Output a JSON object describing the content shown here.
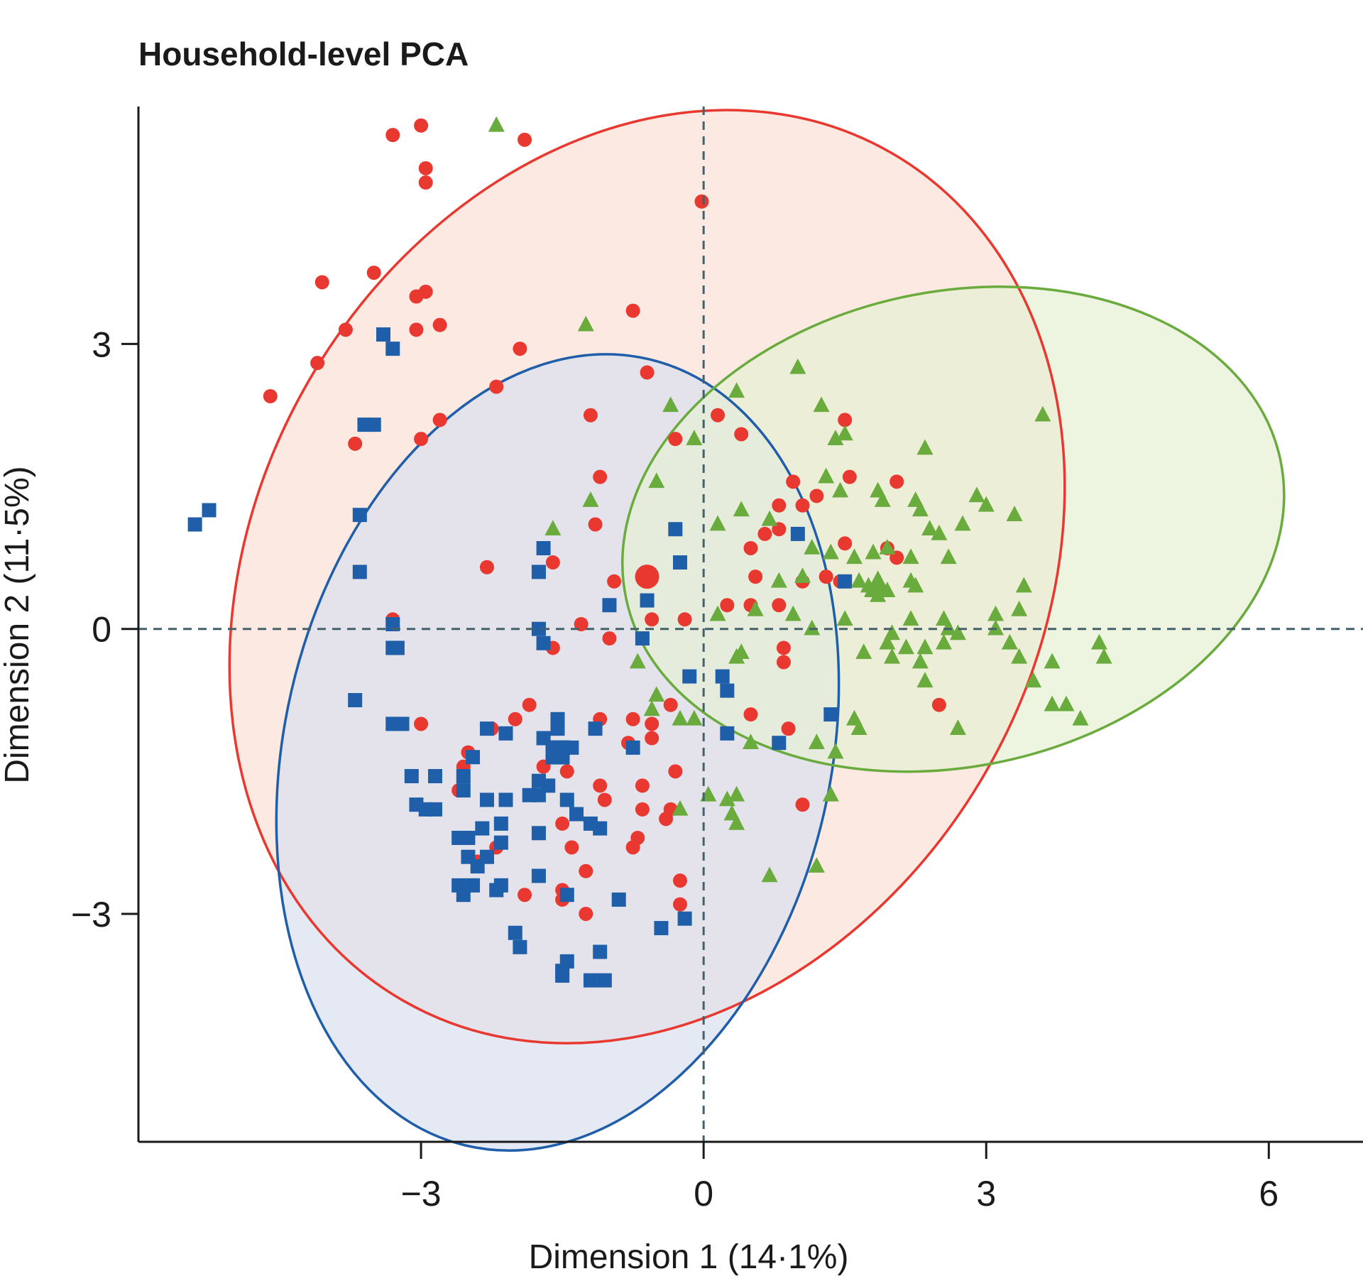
{
  "chart_data": {
    "type": "scatter",
    "title": "Household-level PCA",
    "xlabel": "Dimension 1 (14·1%)",
    "ylabel": "Dimension 2 (11·5%)",
    "xlim": [
      -6,
      7
    ],
    "ylim": [
      -5.4,
      5.5
    ],
    "xticks": [
      -3,
      0,
      3,
      6
    ],
    "xtick_labels": [
      "−3",
      "0",
      "3",
      "6"
    ],
    "yticks": [
      3,
      0,
      -3
    ],
    "ytick_labels": [
      "3",
      "0",
      "−3"
    ],
    "reference_lines": {
      "x": 0,
      "y": 0,
      "style": "dashed"
    },
    "grid": false,
    "legend": "none",
    "series": [
      {
        "marker": "circle",
        "color": "#e8382f",
        "fill": "#fbe0d6",
        "centroid": [
          -0.6,
          0.55
        ],
        "ellipse": {
          "cx": -0.6,
          "cy": 0.55,
          "rx": 4.15,
          "ry": 5.15,
          "angle_deg": 30
        },
        "points": [
          [
            -3.3,
            5.2
          ],
          [
            -3.0,
            5.3
          ],
          [
            -1.9,
            5.15
          ],
          [
            -2.95,
            4.85
          ],
          [
            -2.95,
            4.7
          ],
          [
            -0.02,
            4.5
          ],
          [
            -4.05,
            3.65
          ],
          [
            -3.5,
            3.75
          ],
          [
            -2.95,
            3.55
          ],
          [
            -3.05,
            3.5
          ],
          [
            -3.8,
            3.15
          ],
          [
            -3.05,
            3.15
          ],
          [
            -2.8,
            3.2
          ],
          [
            -0.75,
            3.35
          ],
          [
            -4.1,
            2.8
          ],
          [
            -4.6,
            2.45
          ],
          [
            -1.95,
            2.95
          ],
          [
            -2.2,
            2.55
          ],
          [
            -0.6,
            2.7
          ],
          [
            -3.6,
            2.15
          ],
          [
            -3.7,
            1.95
          ],
          [
            -3.0,
            2.0
          ],
          [
            -2.8,
            2.2
          ],
          [
            -1.2,
            2.25
          ],
          [
            -0.3,
            2.0
          ],
          [
            0.15,
            2.25
          ],
          [
            0.4,
            2.05
          ],
          [
            1.5,
            2.2
          ],
          [
            -1.1,
            1.6
          ],
          [
            0.95,
            1.55
          ],
          [
            1.55,
            1.6
          ],
          [
            2.05,
            1.55
          ],
          [
            1.2,
            1.4
          ],
          [
            1.05,
            1.3
          ],
          [
            0.8,
            1.3
          ],
          [
            0.65,
            1.0
          ],
          [
            -1.15,
            1.1
          ],
          [
            0.8,
            1.05
          ],
          [
            0.5,
            0.85
          ],
          [
            1.5,
            0.9
          ],
          [
            1.95,
            0.85
          ],
          [
            2.05,
            0.75
          ],
          [
            -1.6,
            0.7
          ],
          [
            -2.3,
            0.65
          ],
          [
            -0.95,
            0.5
          ],
          [
            0.55,
            0.55
          ],
          [
            1.05,
            0.5
          ],
          [
            1.3,
            0.55
          ],
          [
            1.45,
            0.5
          ],
          [
            0.25,
            0.25
          ],
          [
            0.5,
            0.25
          ],
          [
            0.8,
            0.25
          ],
          [
            -3.3,
            0.1
          ],
          [
            -1.3,
            0.05
          ],
          [
            -0.55,
            0.1
          ],
          [
            -0.2,
            0.1
          ],
          [
            -1.0,
            -0.1
          ],
          [
            -1.6,
            -0.2
          ],
          [
            0.85,
            -0.2
          ],
          [
            0.85,
            -0.35
          ],
          [
            -1.1,
            -0.95
          ],
          [
            -0.75,
            -0.95
          ],
          [
            -0.35,
            -0.8
          ],
          [
            -0.55,
            -1.0
          ],
          [
            0.5,
            -0.9
          ],
          [
            0.9,
            -1.05
          ],
          [
            -0.55,
            -1.15
          ],
          [
            -0.8,
            -1.2
          ],
          [
            2.5,
            -0.8
          ],
          [
            -3.0,
            -1.0
          ],
          [
            -1.85,
            -0.8
          ],
          [
            -2.0,
            -0.95
          ],
          [
            -2.25,
            -1.05
          ],
          [
            -2.5,
            -1.3
          ],
          [
            -2.55,
            -1.45
          ],
          [
            -1.7,
            -1.45
          ],
          [
            -1.45,
            -1.5
          ],
          [
            -2.6,
            -1.7
          ],
          [
            -0.3,
            -1.5
          ],
          [
            -0.65,
            -1.65
          ],
          [
            -1.1,
            -1.65
          ],
          [
            -1.05,
            -1.8
          ],
          [
            -0.65,
            -1.9
          ],
          [
            -0.4,
            -2.0
          ],
          [
            -0.7,
            -2.2
          ],
          [
            -0.75,
            -2.3
          ],
          [
            -1.4,
            -2.3
          ],
          [
            -2.2,
            -2.3
          ],
          [
            -1.25,
            -2.55
          ],
          [
            -2.4,
            -2.45
          ],
          [
            -1.5,
            -2.75
          ],
          [
            -0.25,
            -2.65
          ],
          [
            -1.9,
            -2.8
          ],
          [
            -1.5,
            -2.85
          ],
          [
            -1.25,
            -3.0
          ],
          [
            -0.25,
            -2.9
          ],
          [
            1.05,
            -1.85
          ],
          [
            -0.35,
            -1.9
          ],
          [
            -1.5,
            -2.05
          ]
        ]
      },
      {
        "marker": "square",
        "color": "#1f5ea8",
        "fill": "#dbe1f0",
        "centroid": [
          -1.55,
          -1.3
        ],
        "ellipse": {
          "cx": -1.55,
          "cy": -1.3,
          "rx": 2.9,
          "ry": 4.25,
          "angle_deg": 13
        },
        "points": [
          [
            -5.4,
            1.1
          ],
          [
            -5.25,
            1.25
          ],
          [
            -3.4,
            3.1
          ],
          [
            -3.3,
            2.95
          ],
          [
            -3.5,
            2.15
          ],
          [
            -3.6,
            2.15
          ],
          [
            -3.65,
            1.2
          ],
          [
            -3.65,
            0.6
          ],
          [
            -1.7,
            0.85
          ],
          [
            -1.75,
            0.6
          ],
          [
            -0.3,
            1.05
          ],
          [
            -0.25,
            0.7
          ],
          [
            1.0,
            1.0
          ],
          [
            -0.6,
            0.3
          ],
          [
            -1.0,
            0.25
          ],
          [
            -0.65,
            -0.1
          ],
          [
            -1.75,
            0.0
          ],
          [
            -1.7,
            -0.15
          ],
          [
            -3.3,
            0.05
          ],
          [
            -3.3,
            -0.2
          ],
          [
            -3.25,
            -0.2
          ],
          [
            -3.7,
            -0.75
          ],
          [
            -3.3,
            -1.0
          ],
          [
            -3.2,
            -1.0
          ],
          [
            -0.15,
            -0.5
          ],
          [
            0.2,
            -0.5
          ],
          [
            0.25,
            -0.65
          ],
          [
            0.25,
            -1.1
          ],
          [
            -1.15,
            -1.05
          ],
          [
            -1.55,
            -0.95
          ],
          [
            -1.55,
            -1.05
          ],
          [
            -2.3,
            -1.05
          ],
          [
            -2.1,
            -1.1
          ],
          [
            -1.7,
            -1.15
          ],
          [
            -1.5,
            -1.25
          ],
          [
            -1.4,
            -1.25
          ],
          [
            -1.55,
            -1.3
          ],
          [
            -0.75,
            -1.25
          ],
          [
            -2.45,
            -1.35
          ],
          [
            -1.75,
            -1.6
          ],
          [
            -2.55,
            -1.55
          ],
          [
            -2.55,
            -1.7
          ],
          [
            -3.1,
            -1.55
          ],
          [
            -2.85,
            -1.55
          ],
          [
            -1.65,
            -1.65
          ],
          [
            -1.75,
            -1.75
          ],
          [
            -1.85,
            -1.75
          ],
          [
            -2.1,
            -1.8
          ],
          [
            -2.3,
            -1.8
          ],
          [
            -1.45,
            -1.8
          ],
          [
            -3.05,
            -1.85
          ],
          [
            -2.95,
            -1.9
          ],
          [
            -2.85,
            -1.9
          ],
          [
            -1.35,
            -1.95
          ],
          [
            -1.2,
            -2.05
          ],
          [
            -1.1,
            -2.1
          ],
          [
            -2.15,
            -2.05
          ],
          [
            -2.35,
            -2.1
          ],
          [
            -2.5,
            -2.2
          ],
          [
            -2.6,
            -2.2
          ],
          [
            -1.75,
            -2.15
          ],
          [
            -2.15,
            -2.25
          ],
          [
            -2.3,
            -2.4
          ],
          [
            -2.5,
            -2.4
          ],
          [
            -1.75,
            -2.6
          ],
          [
            -2.4,
            -2.5
          ],
          [
            -2.45,
            -2.7
          ],
          [
            -2.6,
            -2.7
          ],
          [
            -2.15,
            -2.7
          ],
          [
            -2.2,
            -2.75
          ],
          [
            -2.55,
            -2.8
          ],
          [
            -1.45,
            -2.8
          ],
          [
            -0.9,
            -2.85
          ],
          [
            -0.45,
            -3.15
          ],
          [
            -0.2,
            -3.05
          ],
          [
            -1.1,
            -3.4
          ],
          [
            -1.45,
            -3.5
          ],
          [
            -1.5,
            -3.6
          ],
          [
            -1.5,
            -3.65
          ],
          [
            -1.2,
            -3.7
          ],
          [
            -1.05,
            -3.7
          ],
          [
            -2.0,
            -3.2
          ],
          [
            -1.95,
            -3.35
          ],
          [
            0.8,
            -1.2
          ],
          [
            1.35,
            -0.9
          ],
          [
            1.5,
            0.5
          ]
        ]
      },
      {
        "marker": "triangle",
        "color": "#6aab3d",
        "fill": "#e6f0d4",
        "centroid": [
          1.85,
          0.45
        ],
        "ellipse": {
          "cx": 2.65,
          "cy": 1.05,
          "rx": 3.55,
          "ry": 2.5,
          "angle_deg": -12
        },
        "points": [
          [
            -2.2,
            5.3
          ],
          [
            -1.25,
            3.2
          ],
          [
            1.0,
            2.75
          ],
          [
            0.35,
            2.5
          ],
          [
            1.25,
            2.35
          ],
          [
            1.4,
            2.0
          ],
          [
            1.5,
            2.05
          ],
          [
            2.35,
            1.9
          ],
          [
            3.6,
            2.25
          ],
          [
            -0.35,
            2.35
          ],
          [
            -0.1,
            2.0
          ],
          [
            -0.5,
            1.55
          ],
          [
            -1.2,
            1.35
          ],
          [
            1.3,
            1.6
          ],
          [
            1.45,
            1.45
          ],
          [
            1.85,
            1.45
          ],
          [
            1.9,
            1.35
          ],
          [
            2.25,
            1.35
          ],
          [
            2.3,
            1.25
          ],
          [
            2.9,
            1.4
          ],
          [
            3.0,
            1.3
          ],
          [
            3.3,
            1.2
          ],
          [
            -1.6,
            1.05
          ],
          [
            0.15,
            1.1
          ],
          [
            0.4,
            1.25
          ],
          [
            0.7,
            1.15
          ],
          [
            2.4,
            1.05
          ],
          [
            2.75,
            1.1
          ],
          [
            2.5,
            1.0
          ],
          [
            1.15,
            0.85
          ],
          [
            1.35,
            0.8
          ],
          [
            1.6,
            0.75
          ],
          [
            1.8,
            0.8
          ],
          [
            1.95,
            0.85
          ],
          [
            2.2,
            0.75
          ],
          [
            2.6,
            0.75
          ],
          [
            1.05,
            0.55
          ],
          [
            1.65,
            0.5
          ],
          [
            1.75,
            0.45
          ],
          [
            1.8,
            0.4
          ],
          [
            1.85,
            0.35
          ],
          [
            1.95,
            0.4
          ],
          [
            2.2,
            0.5
          ],
          [
            2.25,
            0.45
          ],
          [
            3.4,
            0.45
          ],
          [
            0.8,
            0.5
          ],
          [
            0.55,
            0.2
          ],
          [
            0.15,
            0.15
          ],
          [
            0.95,
            0.15
          ],
          [
            1.5,
            0.1
          ],
          [
            2.2,
            0.1
          ],
          [
            2.55,
            0.1
          ],
          [
            2.6,
            0.0
          ],
          [
            2.7,
            -0.05
          ],
          [
            3.1,
            0.15
          ],
          [
            3.35,
            0.2
          ],
          [
            2.0,
            -0.05
          ],
          [
            2.15,
            -0.2
          ],
          [
            2.35,
            -0.2
          ],
          [
            2.55,
            -0.15
          ],
          [
            1.15,
            0.0
          ],
          [
            1.7,
            -0.25
          ],
          [
            1.95,
            -0.15
          ],
          [
            2.0,
            -0.3
          ],
          [
            3.1,
            0.0
          ],
          [
            3.25,
            -0.15
          ],
          [
            3.35,
            -0.3
          ],
          [
            4.2,
            -0.15
          ],
          [
            4.25,
            -0.3
          ],
          [
            3.7,
            -0.35
          ],
          [
            2.3,
            -0.35
          ],
          [
            0.35,
            -0.3
          ],
          [
            0.4,
            -0.25
          ],
          [
            -0.7,
            -0.35
          ],
          [
            -0.5,
            -0.7
          ],
          [
            3.5,
            -0.55
          ],
          [
            3.7,
            -0.8
          ],
          [
            3.85,
            -0.8
          ],
          [
            4.0,
            -0.95
          ],
          [
            2.35,
            -0.55
          ],
          [
            1.6,
            -0.95
          ],
          [
            1.65,
            -1.05
          ],
          [
            2.7,
            -1.05
          ],
          [
            -0.1,
            -0.95
          ],
          [
            -0.25,
            -0.95
          ],
          [
            0.5,
            -1.2
          ],
          [
            -0.55,
            -0.85
          ],
          [
            1.2,
            -1.2
          ],
          [
            1.4,
            -1.3
          ],
          [
            0.05,
            -1.75
          ],
          [
            0.25,
            -1.8
          ],
          [
            0.35,
            -1.75
          ],
          [
            0.3,
            -1.95
          ],
          [
            0.35,
            -2.05
          ],
          [
            -0.25,
            -1.9
          ],
          [
            0.7,
            -2.6
          ],
          [
            1.2,
            -2.5
          ],
          [
            1.35,
            -1.75
          ]
        ]
      }
    ]
  }
}
